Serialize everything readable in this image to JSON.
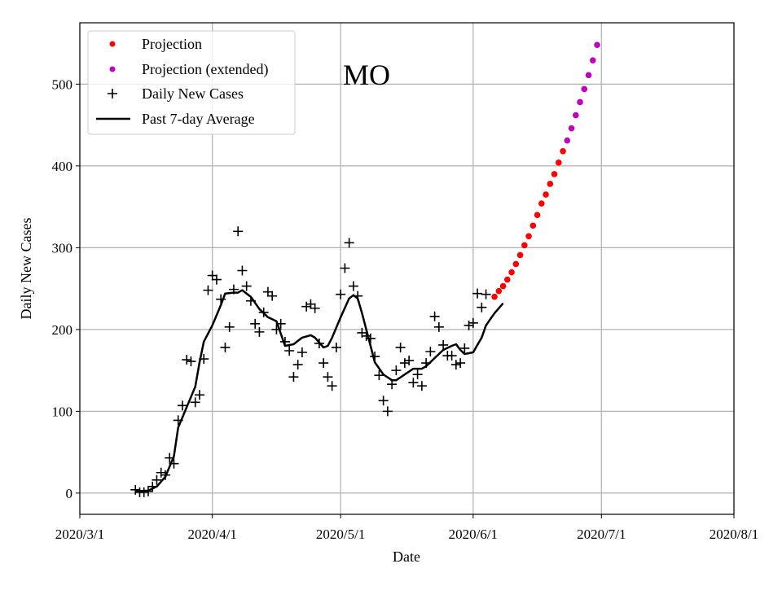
{
  "chart_data": {
    "type": "scatter",
    "title": "MO",
    "xlabel": "Date",
    "ylabel": "Daily New Cases",
    "x_origin_date": "2020/3/1",
    "xlim_days": [
      0,
      153
    ],
    "ylim": [
      -26,
      575
    ],
    "grid": true,
    "legend_position": "top-left",
    "x_ticks": [
      {
        "day": 0,
        "label": "2020/3/1"
      },
      {
        "day": 31,
        "label": "2020/4/1"
      },
      {
        "day": 61,
        "label": "2020/5/1"
      },
      {
        "day": 92,
        "label": "2020/6/1"
      },
      {
        "day": 122,
        "label": "2020/7/1"
      },
      {
        "day": 153,
        "label": "2020/8/1"
      }
    ],
    "y_ticks": [
      0,
      100,
      200,
      300,
      400,
      500
    ],
    "legend": [
      "Projection",
      "Projection (extended)",
      "Daily New Cases",
      "Past 7-day Average"
    ],
    "colors": {
      "projection": "#ff0000",
      "projection_extended": "#bf00bf",
      "daily": "#000000",
      "average": "#000000",
      "grid": "#b0b0b0"
    },
    "daily_new_cases": {
      "start_day": 13,
      "values": [
        4,
        1,
        1,
        2,
        8,
        16,
        25,
        22,
        43,
        36,
        89,
        107,
        163,
        161,
        111,
        120,
        164,
        248,
        266,
        261,
        237,
        178,
        203,
        249,
        320,
        272,
        253,
        235,
        207,
        197,
        221,
        246,
        241,
        200,
        207,
        185,
        174,
        142,
        157,
        172,
        228,
        231,
        226,
        183,
        159,
        142,
        131,
        178,
        243,
        275,
        306,
        253,
        241,
        196,
        192,
        189,
        167,
        144,
        113,
        100,
        133,
        150,
        178,
        159,
        162,
        135,
        145,
        131,
        159,
        173,
        216,
        203,
        181,
        168,
        168,
        157,
        159,
        177,
        205,
        208,
        244,
        227,
        243
      ]
    },
    "past_7day_average": [
      [
        13,
        2
      ],
      [
        16,
        3
      ],
      [
        18,
        8
      ],
      [
        20,
        20
      ],
      [
        22,
        45
      ],
      [
        23,
        80
      ],
      [
        25,
        105
      ],
      [
        27,
        130
      ],
      [
        28,
        160
      ],
      [
        29,
        185
      ],
      [
        31,
        205
      ],
      [
        33,
        230
      ],
      [
        34,
        244
      ],
      [
        36,
        245
      ],
      [
        37,
        245
      ],
      [
        38,
        248
      ],
      [
        40,
        240
      ],
      [
        42,
        225
      ],
      [
        44,
        215
      ],
      [
        46,
        210
      ],
      [
        47,
        195
      ],
      [
        48,
        180
      ],
      [
        50,
        182
      ],
      [
        52,
        190
      ],
      [
        54,
        193
      ],
      [
        55,
        190
      ],
      [
        57,
        178
      ],
      [
        58,
        180
      ],
      [
        59,
        190
      ],
      [
        61,
        215
      ],
      [
        63,
        238
      ],
      [
        64,
        242
      ],
      [
        65,
        238
      ],
      [
        66,
        220
      ],
      [
        68,
        180
      ],
      [
        69,
        160
      ],
      [
        71,
        145
      ],
      [
        73,
        138
      ],
      [
        74,
        138
      ],
      [
        76,
        145
      ],
      [
        78,
        152
      ],
      [
        80,
        152
      ],
      [
        81,
        155
      ],
      [
        83,
        165
      ],
      [
        85,
        175
      ],
      [
        87,
        180
      ],
      [
        88,
        182
      ],
      [
        89,
        175
      ],
      [
        90,
        170
      ],
      [
        92,
        172
      ],
      [
        94,
        190
      ],
      [
        95,
        205
      ],
      [
        97,
        220
      ],
      [
        99,
        232
      ]
    ],
    "projection": {
      "start_day": 97,
      "values": [
        240,
        247,
        253,
        261,
        270,
        280,
        291,
        303,
        314,
        327,
        340,
        354,
        365,
        378,
        390,
        404,
        418
      ]
    },
    "projection_extended": {
      "start_day": 114,
      "values": [
        431,
        446,
        462,
        478,
        494,
        511,
        529,
        548
      ]
    }
  }
}
